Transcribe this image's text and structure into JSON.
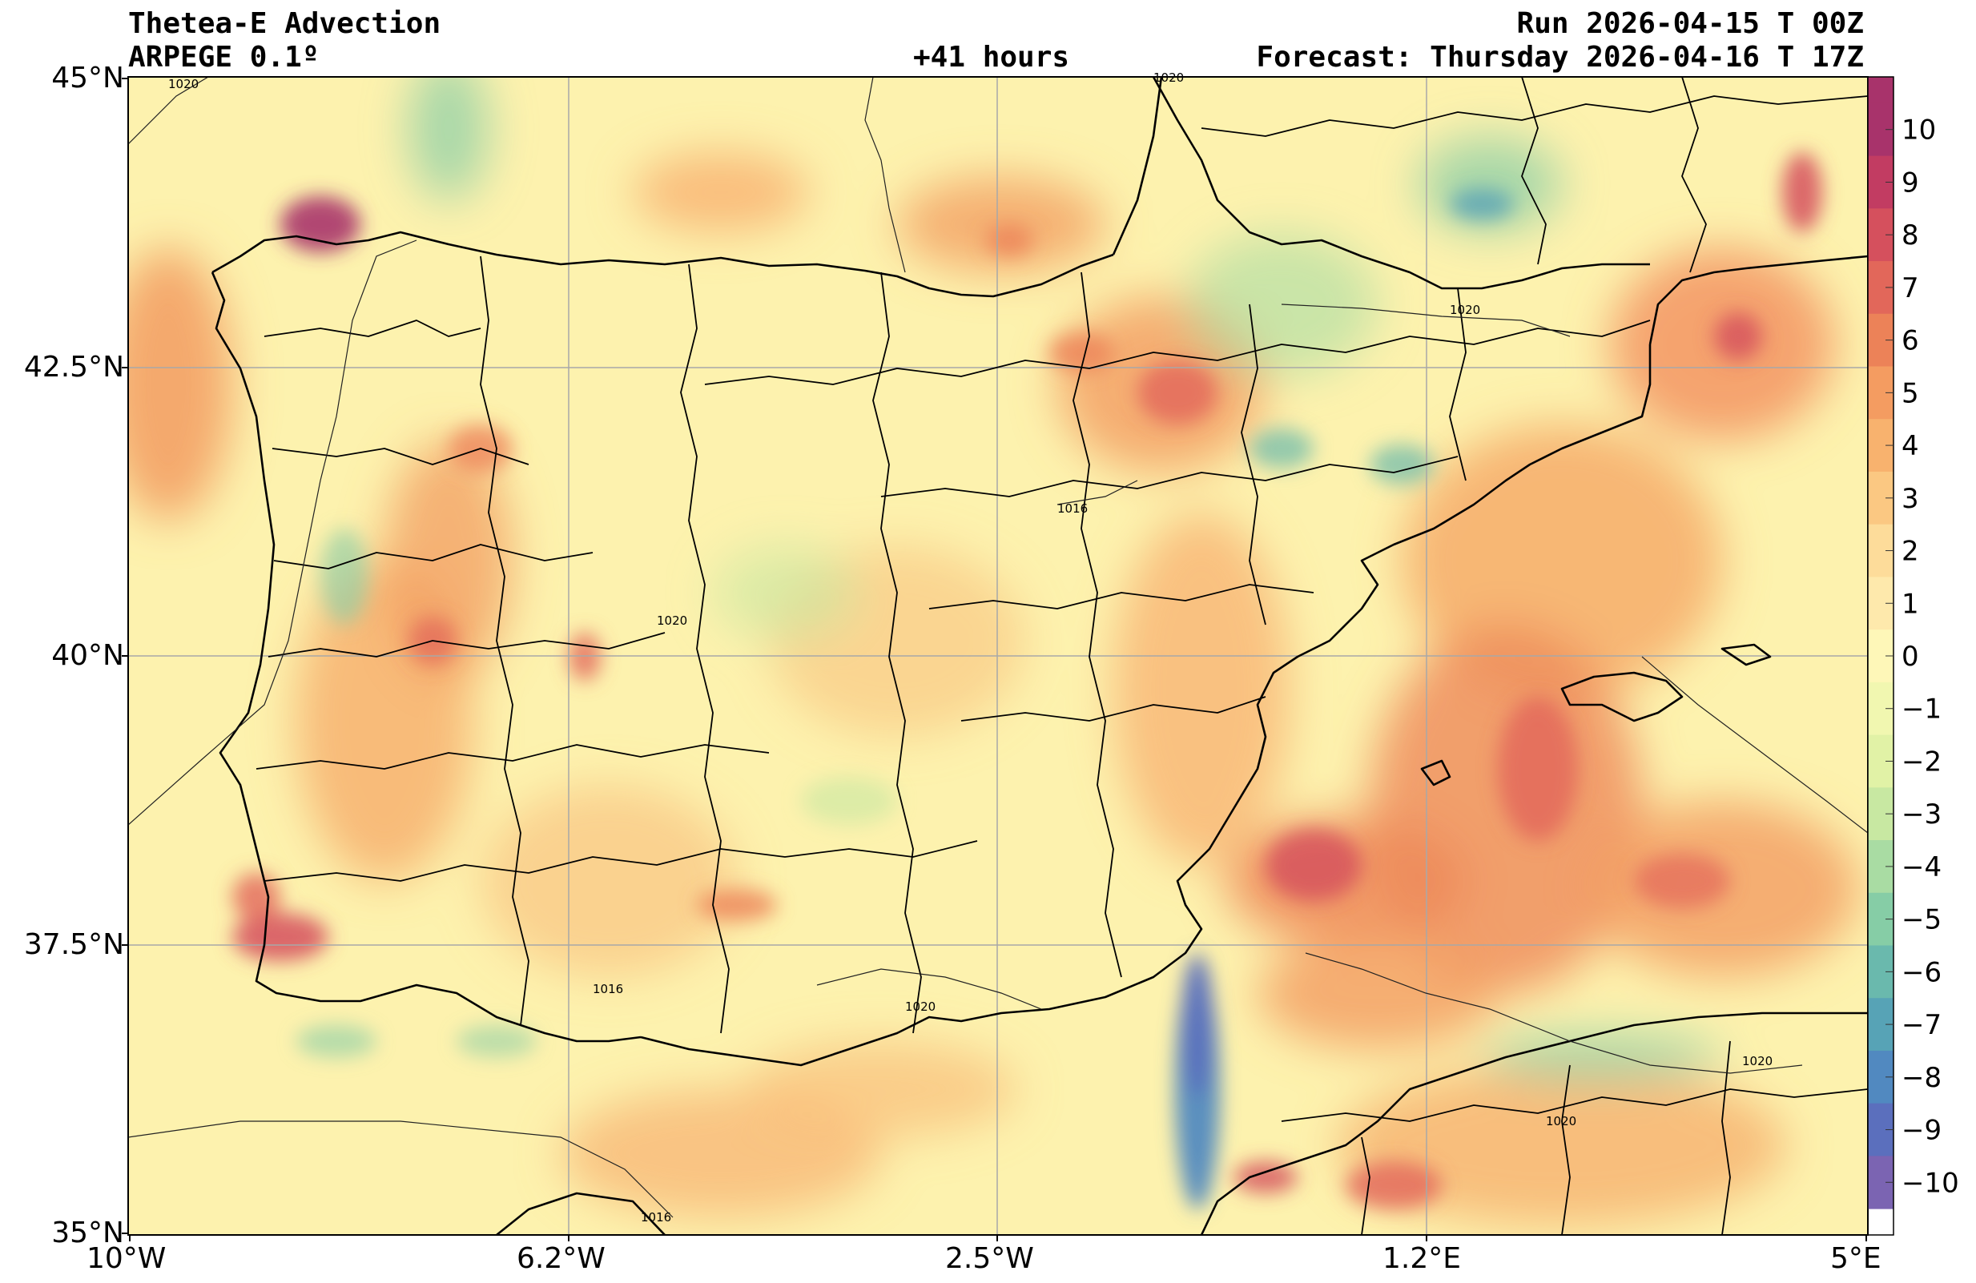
{
  "header": {
    "title": "Thetea-E Advection",
    "model": "ARPEGE 0.1º",
    "lead": "+41 hours",
    "run": "Run 2026-04-15 T 00Z",
    "forecast": "Forecast: Thursday 2026-04-16 T 17Z"
  },
  "map": {
    "extent": {
      "lon": [
        -10,
        5
      ],
      "lat": [
        35,
        45
      ]
    },
    "lat_ticks": [
      "45°N",
      "42.5°N",
      "40°N",
      "37.5°N",
      "35°N"
    ],
    "lon_ticks": [
      "10°W",
      "6.2°W",
      "2.5°W",
      "1.2°E",
      "5°E"
    ],
    "isobar_labels": [
      "1020",
      "1020",
      "1020",
      "1016",
      "1020",
      "1016",
      "1020",
      "1020",
      "1020",
      "1016"
    ],
    "colors": {
      "land_base": "#fdf6b4",
      "grid": "#b0b0b0",
      "border": "#000000"
    }
  },
  "colorbar": {
    "labels": [
      "10",
      "9",
      "8",
      "7",
      "6",
      "5",
      "4",
      "3",
      "2",
      "1",
      "0",
      "−1",
      "−2",
      "−3",
      "−4",
      "−5",
      "−6",
      "−7",
      "−8",
      "−9",
      "−10"
    ],
    "colors": [
      "#a8336b",
      "#c23c62",
      "#d5505d",
      "#e2675a",
      "#ec8258",
      "#f49c61",
      "#f8b26e",
      "#fbc882",
      "#fddc9a",
      "#fee9ac",
      "#fef7b8",
      "#f1f7b0",
      "#e1f2a6",
      "#c8e8a2",
      "#a9dca3",
      "#86cda6",
      "#6ab9ad",
      "#57a3b6",
      "#5189c0",
      "#5b6fbd",
      "#7b64b2"
    ]
  }
}
